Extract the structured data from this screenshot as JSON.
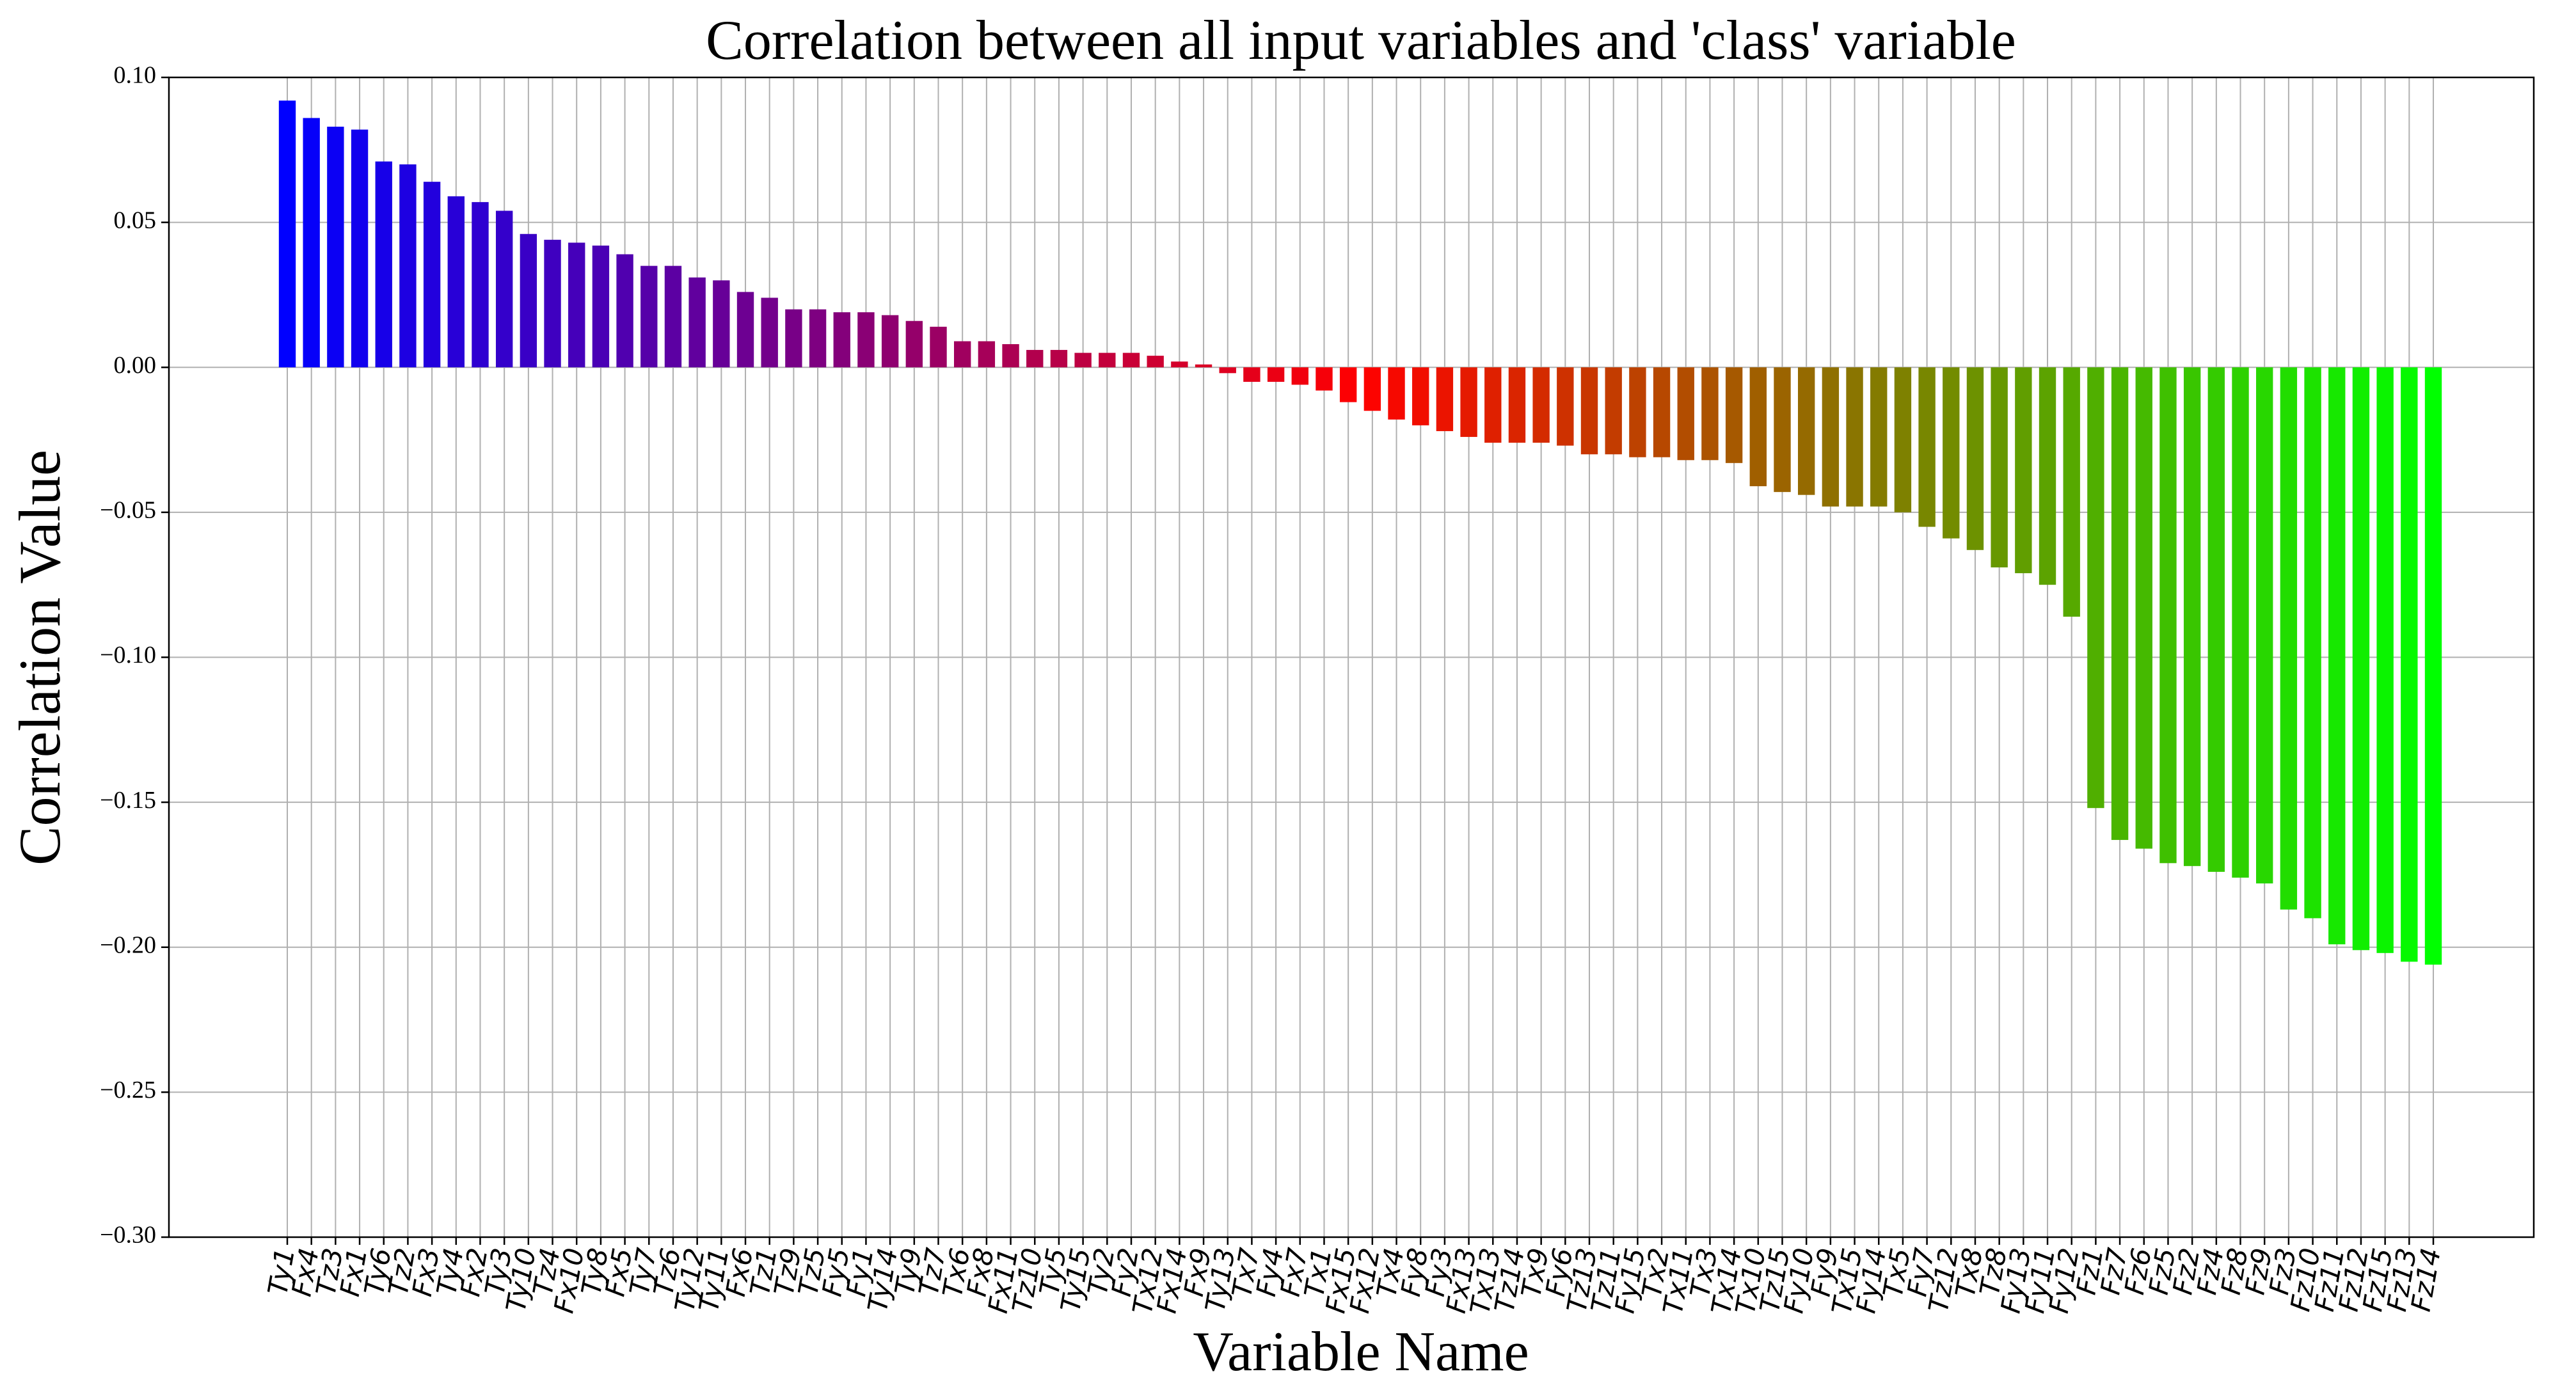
{
  "chart_data": {
    "type": "bar",
    "title": "Correlation between all input variables and 'class' variable",
    "x_label": "Variable Name",
    "y_label": "Correlation Value",
    "categories": [
      "Ty1",
      "Fx4",
      "Tz3",
      "Fx1",
      "Ty6",
      "Tz2",
      "Fx3",
      "Ty4",
      "Fx2",
      "Ty3",
      "Ty10",
      "Tz4",
      "Fx10",
      "Ty8",
      "Fx5",
      "Ty7",
      "Tz6",
      "Ty12",
      "Ty11",
      "Fx6",
      "Tz1",
      "Tz9",
      "Tz5",
      "Fy5",
      "Fy1",
      "Ty14",
      "Ty9",
      "Tz7",
      "Tx6",
      "Fx8",
      "Fx11",
      "Tz10",
      "Ty5",
      "Ty15",
      "Ty2",
      "Fy2",
      "Tx12",
      "Fx14",
      "Fx9",
      "Ty13",
      "Tx7",
      "Fy4",
      "Fx7",
      "Tx1",
      "Fx15",
      "Fx12",
      "Tx4",
      "Fy8",
      "Fy3",
      "Fx13",
      "Tx13",
      "Tz14",
      "Tx9",
      "Fy6",
      "Tz13",
      "Tz11",
      "Fy15",
      "Tx2",
      "Tx11",
      "Tx3",
      "Tx14",
      "Tx10",
      "Tz15",
      "Fy10",
      "Fy9",
      "Tx15",
      "Fy14",
      "Tx5",
      "Fy7",
      "Tz12",
      "Tx8",
      "Tz8",
      "Fy13",
      "Fy11",
      "Fy12",
      "Fz1",
      "Fz7",
      "Fz6",
      "Fz5",
      "Fz2",
      "Fz4",
      "Fz8",
      "Fz9",
      "Fz3",
      "Fz10",
      "Fz11",
      "Fz12",
      "Fz15",
      "Fz13",
      "Fz14"
    ],
    "values": [
      0.092,
      0.086,
      0.083,
      0.082,
      0.071,
      0.07,
      0.064,
      0.059,
      0.057,
      0.054,
      0.046,
      0.044,
      0.043,
      0.042,
      0.039,
      0.035,
      0.035,
      0.031,
      0.03,
      0.026,
      0.024,
      0.02,
      0.02,
      0.019,
      0.019,
      0.018,
      0.016,
      0.014,
      0.009,
      0.009,
      0.008,
      0.006,
      0.006,
      0.005,
      0.005,
      0.005,
      0.004,
      0.002,
      0.001,
      -0.002,
      -0.005,
      -0.005,
      -0.006,
      -0.008,
      -0.012,
      -0.015,
      -0.018,
      -0.02,
      -0.022,
      -0.024,
      -0.026,
      -0.026,
      -0.026,
      -0.027,
      -0.03,
      -0.03,
      -0.031,
      -0.031,
      -0.032,
      -0.032,
      -0.033,
      -0.041,
      -0.043,
      -0.044,
      -0.048,
      -0.048,
      -0.048,
      -0.05,
      -0.055,
      -0.059,
      -0.063,
      -0.069,
      -0.071,
      -0.075,
      -0.086,
      -0.152,
      -0.163,
      -0.166,
      -0.171,
      -0.172,
      -0.174,
      -0.176,
      -0.178,
      -0.187,
      -0.19,
      -0.199,
      -0.201,
      -0.202,
      -0.205,
      -0.206
    ],
    "color_stops": [
      "#0000ff",
      "#ff0000",
      "#00ff00"
    ],
    "ylim": [
      -0.3,
      0.1
    ],
    "yticks": [
      {
        "value": 0.1,
        "label": "0.10"
      },
      {
        "value": 0.05,
        "label": "0.05"
      },
      {
        "value": 0,
        "label": "0.00"
      },
      {
        "value": -0.05,
        "label": "−0.05"
      },
      {
        "value": -0.1,
        "label": "−0.10"
      },
      {
        "value": -0.15,
        "label": "−0.15"
      },
      {
        "value": -0.2,
        "label": "−0.20"
      },
      {
        "value": -0.25,
        "label": "−0.25"
      },
      {
        "value": -0.3,
        "label": "−0.30"
      }
    ],
    "grid": true
  }
}
